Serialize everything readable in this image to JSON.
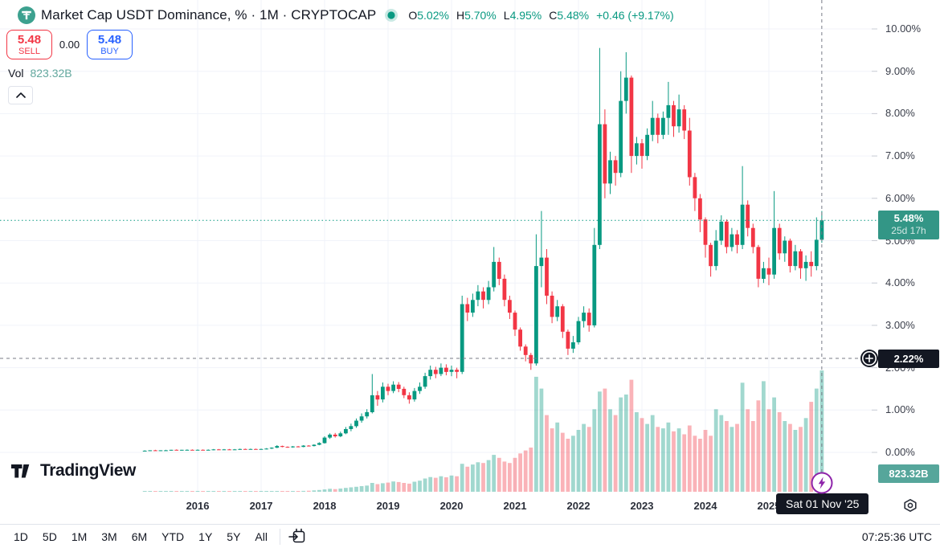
{
  "header": {
    "symbol_title": "Market Cap USDT Dominance, % · 1M · CRYPTOCAP",
    "ohlc": {
      "o_label": "O",
      "o_value": "5.02%",
      "h_label": "H",
      "h_value": "5.70%",
      "l_label": "L",
      "l_value": "4.95%",
      "c_label": "C",
      "c_value": "5.48%",
      "change": "+0.46 (+9.17%)"
    }
  },
  "trade_panel": {
    "sell_price": "5.48",
    "sell_label": "SELL",
    "spread": "0.00",
    "buy_price": "5.48",
    "buy_label": "BUY"
  },
  "volume_row": {
    "label": "Vol",
    "value": "823.32B"
  },
  "watermark": "TradingView",
  "price_scale": {
    "labels": [
      "10.00%",
      "9.00%",
      "8.00%",
      "7.00%",
      "6.00%",
      "5.00%",
      "4.00%",
      "3.00%",
      "2.00%",
      "1.00%",
      "0.00%"
    ],
    "last_price_badge": {
      "price": "5.48%",
      "countdown": "25d 17h"
    },
    "crosshair_badge": "2.22%",
    "volume_badge": "823.32B"
  },
  "time_scale": {
    "years": [
      "2016",
      "2017",
      "2018",
      "2019",
      "2020",
      "2021",
      "2022",
      "2023",
      "2024",
      "2025"
    ],
    "crosshair_tooltip": "Sat 01 Nov '25"
  },
  "toolbar": {
    "ranges": [
      "1D",
      "5D",
      "1M",
      "3M",
      "6M",
      "YTD",
      "1Y",
      "5Y",
      "All"
    ],
    "clock": "07:25:36 UTC"
  },
  "colors": {
    "up": "#089981",
    "down": "#f23645",
    "volume_up": "rgba(8,153,129,0.38)",
    "volume_down": "rgba(242,54,69,0.38)",
    "grid": "#f0f3fa",
    "crosshair": "#787b86",
    "tick": "#c9ccd4",
    "buy": "#2962ff",
    "sell": "#f23645",
    "badge_dark": "#131722",
    "last_badge_bg": "#339686",
    "volume_badge_bg": "#56a69b",
    "accent_purple": "#8e24aa"
  },
  "chart_data": {
    "type": "candlestick+volume",
    "title": "Market Cap USDT Dominance, %",
    "interval": "1M",
    "start": "2015-03",
    "y_axis": {
      "min": 0,
      "max": 10,
      "unit": "%",
      "grid_step": 1
    },
    "last_price": 5.48,
    "crosshair_price": 2.22,
    "crosshair_x_index": 128,
    "volume_unit": "B",
    "last_volume": 823.32,
    "candles": [
      [
        0.04,
        0.05,
        0.03,
        0.04
      ],
      [
        0.04,
        0.05,
        0.03,
        0.05
      ],
      [
        0.05,
        0.06,
        0.04,
        0.04
      ],
      [
        0.04,
        0.05,
        0.04,
        0.05
      ],
      [
        0.05,
        0.06,
        0.04,
        0.05
      ],
      [
        0.05,
        0.06,
        0.04,
        0.06
      ],
      [
        0.06,
        0.07,
        0.05,
        0.05
      ],
      [
        0.05,
        0.06,
        0.05,
        0.06
      ],
      [
        0.06,
        0.07,
        0.05,
        0.06
      ],
      [
        0.06,
        0.07,
        0.05,
        0.05
      ],
      [
        0.05,
        0.07,
        0.05,
        0.06
      ],
      [
        0.06,
        0.07,
        0.05,
        0.05
      ],
      [
        0.05,
        0.07,
        0.05,
        0.06
      ],
      [
        0.06,
        0.08,
        0.05,
        0.07
      ],
      [
        0.07,
        0.08,
        0.06,
        0.06
      ],
      [
        0.06,
        0.08,
        0.06,
        0.07
      ],
      [
        0.07,
        0.08,
        0.06,
        0.06
      ],
      [
        0.06,
        0.08,
        0.06,
        0.07
      ],
      [
        0.07,
        0.09,
        0.06,
        0.08
      ],
      [
        0.08,
        0.09,
        0.07,
        0.07
      ],
      [
        0.07,
        0.09,
        0.07,
        0.08
      ],
      [
        0.08,
        0.09,
        0.07,
        0.07
      ],
      [
        0.07,
        0.09,
        0.07,
        0.08
      ],
      [
        0.08,
        0.1,
        0.07,
        0.09
      ],
      [
        0.09,
        0.12,
        0.08,
        0.11
      ],
      [
        0.11,
        0.17,
        0.1,
        0.15
      ],
      [
        0.15,
        0.16,
        0.12,
        0.13
      ],
      [
        0.13,
        0.14,
        0.11,
        0.12
      ],
      [
        0.12,
        0.15,
        0.11,
        0.14
      ],
      [
        0.14,
        0.15,
        0.12,
        0.13
      ],
      [
        0.13,
        0.17,
        0.12,
        0.16
      ],
      [
        0.16,
        0.17,
        0.14,
        0.15
      ],
      [
        0.15,
        0.19,
        0.14,
        0.18
      ],
      [
        0.18,
        0.24,
        0.17,
        0.22
      ],
      [
        0.22,
        0.38,
        0.21,
        0.35
      ],
      [
        0.35,
        0.45,
        0.32,
        0.42
      ],
      [
        0.42,
        0.46,
        0.35,
        0.38
      ],
      [
        0.38,
        0.49,
        0.36,
        0.45
      ],
      [
        0.45,
        0.6,
        0.43,
        0.55
      ],
      [
        0.55,
        0.68,
        0.5,
        0.62
      ],
      [
        0.62,
        0.8,
        0.58,
        0.75
      ],
      [
        0.75,
        0.92,
        0.7,
        0.85
      ],
      [
        0.85,
        1.02,
        0.8,
        0.95
      ],
      [
        0.95,
        1.85,
        0.92,
        1.35
      ],
      [
        1.35,
        1.45,
        1.1,
        1.25
      ],
      [
        1.25,
        1.65,
        1.18,
        1.55
      ],
      [
        1.55,
        1.62,
        1.35,
        1.45
      ],
      [
        1.45,
        1.68,
        1.4,
        1.6
      ],
      [
        1.6,
        1.66,
        1.42,
        1.5
      ],
      [
        1.5,
        1.55,
        1.28,
        1.35
      ],
      [
        1.35,
        1.42,
        1.15,
        1.25
      ],
      [
        1.25,
        1.52,
        1.2,
        1.45
      ],
      [
        1.45,
        1.65,
        1.38,
        1.55
      ],
      [
        1.55,
        1.88,
        1.5,
        1.8
      ],
      [
        1.8,
        2.05,
        1.72,
        1.95
      ],
      [
        1.95,
        2.02,
        1.75,
        1.85
      ],
      [
        1.85,
        2.1,
        1.8,
        2.0
      ],
      [
        2.0,
        2.08,
        1.82,
        1.9
      ],
      [
        1.9,
        2.05,
        1.8,
        1.95
      ],
      [
        1.95,
        2.0,
        1.75,
        1.9
      ],
      [
        1.9,
        3.7,
        1.85,
        3.5
      ],
      [
        3.5,
        3.65,
        3.1,
        3.3
      ],
      [
        3.3,
        3.75,
        3.2,
        3.6
      ],
      [
        3.6,
        3.95,
        3.45,
        3.8
      ],
      [
        3.8,
        3.9,
        3.4,
        3.6
      ],
      [
        3.6,
        4.05,
        3.5,
        3.9
      ],
      [
        3.9,
        4.85,
        3.8,
        4.5
      ],
      [
        4.5,
        4.6,
        3.95,
        4.1
      ],
      [
        4.1,
        4.2,
        3.45,
        3.6
      ],
      [
        3.6,
        3.7,
        3.15,
        3.3
      ],
      [
        3.3,
        3.35,
        2.75,
        2.9
      ],
      [
        2.9,
        2.95,
        2.4,
        2.5
      ],
      [
        2.5,
        2.55,
        2.15,
        2.3
      ],
      [
        2.3,
        2.35,
        1.95,
        2.1
      ],
      [
        2.1,
        5.15,
        2.05,
        4.4
      ],
      [
        4.4,
        5.7,
        3.9,
        4.6
      ],
      [
        4.6,
        4.8,
        3.5,
        3.7
      ],
      [
        3.7,
        3.8,
        3.05,
        3.2
      ],
      [
        3.2,
        3.6,
        3.1,
        3.45
      ],
      [
        3.45,
        3.5,
        2.7,
        2.85
      ],
      [
        2.85,
        2.9,
        2.3,
        2.45
      ],
      [
        2.45,
        2.75,
        2.35,
        2.6
      ],
      [
        2.6,
        3.2,
        2.55,
        3.1
      ],
      [
        3.1,
        3.45,
        2.95,
        3.3
      ],
      [
        3.3,
        3.4,
        2.85,
        3.0
      ],
      [
        3.0,
        5.3,
        2.95,
        4.9
      ],
      [
        4.9,
        9.55,
        4.8,
        7.75
      ],
      [
        7.75,
        8.1,
        6.0,
        6.35
      ],
      [
        6.35,
        7.1,
        6.1,
        6.9
      ],
      [
        6.9,
        7.0,
        6.3,
        6.6
      ],
      [
        6.6,
        9.0,
        6.5,
        8.3
      ],
      [
        8.3,
        9.45,
        8.0,
        8.85
      ],
      [
        8.85,
        8.9,
        6.6,
        7.0
      ],
      [
        7.0,
        7.45,
        6.8,
        7.3
      ],
      [
        7.3,
        7.4,
        6.7,
        7.0
      ],
      [
        7.0,
        7.65,
        6.9,
        7.5
      ],
      [
        7.5,
        8.3,
        7.35,
        7.9
      ],
      [
        7.9,
        8.0,
        7.3,
        7.5
      ],
      [
        7.5,
        8.05,
        7.4,
        7.9
      ],
      [
        7.9,
        8.75,
        7.5,
        8.2
      ],
      [
        8.2,
        8.3,
        7.45,
        7.7
      ],
      [
        7.7,
        8.45,
        7.55,
        8.1
      ],
      [
        8.1,
        8.2,
        7.4,
        7.6
      ],
      [
        7.6,
        7.9,
        6.3,
        6.5
      ],
      [
        6.5,
        6.6,
        5.7,
        6.0
      ],
      [
        6.0,
        6.1,
        5.2,
        5.5
      ],
      [
        5.5,
        5.55,
        4.6,
        4.9
      ],
      [
        4.9,
        4.95,
        4.15,
        4.4
      ],
      [
        4.4,
        5.25,
        4.3,
        5.0
      ],
      [
        5.0,
        5.6,
        4.9,
        5.45
      ],
      [
        5.45,
        5.5,
        4.7,
        4.85
      ],
      [
        4.85,
        5.3,
        4.75,
        5.15
      ],
      [
        5.15,
        5.25,
        4.7,
        4.9
      ],
      [
        4.9,
        6.76,
        4.8,
        5.85
      ],
      [
        5.85,
        5.95,
        5.1,
        5.3
      ],
      [
        5.3,
        5.4,
        4.7,
        4.85
      ],
      [
        4.85,
        4.9,
        3.9,
        4.1
      ],
      [
        4.1,
        4.5,
        4.0,
        4.35
      ],
      [
        4.35,
        4.6,
        3.95,
        4.2
      ],
      [
        4.2,
        6.17,
        4.1,
        5.3
      ],
      [
        5.3,
        5.4,
        4.55,
        4.7
      ],
      [
        4.7,
        5.1,
        4.5,
        5.0
      ],
      [
        5.0,
        5.05,
        4.25,
        4.4
      ],
      [
        4.4,
        4.9,
        4.3,
        4.75
      ],
      [
        4.75,
        4.8,
        4.1,
        4.35
      ],
      [
        4.35,
        4.65,
        4.05,
        4.5
      ],
      [
        4.5,
        4.75,
        4.15,
        4.4
      ],
      [
        4.4,
        5.55,
        4.3,
        5.02
      ],
      [
        5.02,
        5.7,
        4.95,
        5.48
      ]
    ],
    "volumes": [
      0.3,
      0.4,
      0.35,
      0.4,
      0.5,
      0.45,
      0.5,
      0.55,
      0.5,
      0.6,
      0.6,
      0.7,
      0.65,
      0.7,
      0.8,
      0.9,
      0.85,
      0.9,
      1.0,
      1.1,
      1.0,
      1.2,
      1.5,
      2,
      2.5,
      3.5,
      4,
      3.5,
      4.5,
      5,
      6,
      7,
      9,
      12,
      16,
      20,
      18,
      22,
      26,
      30,
      34,
      38,
      42,
      60,
      52,
      58,
      62,
      70,
      66,
      60,
      55,
      68,
      75,
      90,
      100,
      95,
      105,
      98,
      110,
      105,
      190,
      170,
      185,
      200,
      195,
      215,
      250,
      230,
      205,
      195,
      230,
      260,
      280,
      300,
      780,
      700,
      520,
      430,
      470,
      400,
      360,
      380,
      420,
      460,
      440,
      560,
      680,
      700,
      560,
      520,
      640,
      660,
      760,
      540,
      500,
      460,
      520,
      440,
      430,
      470,
      410,
      430,
      390,
      450,
      380,
      360,
      420,
      380,
      560,
      520,
      480,
      440,
      460,
      740,
      560,
      480,
      620,
      750,
      560,
      640,
      540,
      480,
      460,
      420,
      440,
      500,
      610,
      700,
      823.32
    ]
  }
}
